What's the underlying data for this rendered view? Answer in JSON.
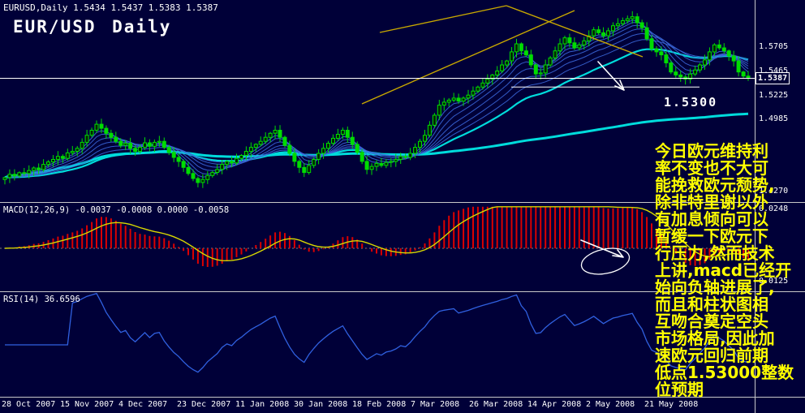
{
  "window": {
    "symbol_info": "EURUSD,Daily  1.5434 1.5437 1.5383 1.5387",
    "watermark": "EUR/USD Daily"
  },
  "quote": {
    "open": "1.5434",
    "high": "1.5437",
    "low": "1.5383",
    "close": "1.5387"
  },
  "colors": {
    "background": "#000038",
    "candle": "#00DC00",
    "candle_fill_up": "#002800",
    "ma_fan": "#3A66D8",
    "ma_slow": "#00DCDC",
    "macd_histogram": "#DC0000",
    "macd_signal": "#D8D800",
    "rsi_line": "#3060E0",
    "trendline": "#C8A800",
    "separator": "#C8C8C8",
    "level_line": "#FFFFFF",
    "annotation_text": "#FFFF00",
    "axis_text": "#FFFFFF"
  },
  "indicators": {
    "macd_label": "MACD(12,26,9) -0.0037 -0.0008 0.0000 -0.0058",
    "rsi_label": "RSI(14) 36.6596"
  },
  "level_label": "1.5300",
  "analysis_note": {
    "lines": [
      "今日欧元维持利",
      "率不变也不大可",
      "能挽救欧元颓势,",
      "除非特里谢以外",
      "有加息倾向可以",
      "暂缓一下欧元下",
      "行压力,然而技术",
      "上讲,macd已经开",
      "始向负轴进展了,",
      "而且和柱状图相",
      "互吻合奠定空头",
      "市场格局,因此加",
      "速欧元回归前期",
      "低点1.53000整数",
      "位预期"
    ]
  },
  "axes": {
    "price_labels": [
      "1.5705",
      "1.5465",
      "1.5225",
      "1.4985",
      "1.4270"
    ],
    "current_price": "1.5387",
    "macd_labels": [
      "0.0248",
      "0.0125"
    ],
    "dates": [
      "28 Oct 2007",
      "15 Nov 2007",
      "4 Dec 2007",
      "23 Dec 2007",
      "11 Jan 2008",
      "30 Jan 2008",
      "18 Feb 2008",
      "7 Mar 2008",
      "26 Mar 2008",
      "14 Apr 2008",
      "2 May 2008",
      "21 May 2008"
    ]
  },
  "chart_data": {
    "type": "candlestick",
    "symbol": "EURUSD",
    "timeframe": "Daily",
    "title": "EUR/USD Daily",
    "ylim": [
      1.418,
      1.615
    ],
    "current_price": 1.5387,
    "support_level": 1.53,
    "closes": [
      1.44,
      1.4432,
      1.4415,
      1.4448,
      1.444,
      1.447,
      1.4495,
      1.4478,
      1.453,
      1.4555,
      1.458,
      1.461,
      1.459,
      1.4645,
      1.466,
      1.469,
      1.475,
      1.482,
      1.487,
      1.493,
      1.489,
      1.484,
      1.48,
      1.476,
      1.472,
      1.474,
      1.469,
      1.466,
      1.47,
      1.4745,
      1.471,
      1.475,
      1.476,
      1.47,
      1.465,
      1.46,
      1.456,
      1.45,
      1.444,
      1.439,
      1.435,
      1.438,
      1.442,
      1.445,
      1.448,
      1.453,
      1.456,
      1.4545,
      1.459,
      1.462,
      1.466,
      1.47,
      1.473,
      1.476,
      1.48,
      1.484,
      1.487,
      1.48,
      1.472,
      1.464,
      1.456,
      1.45,
      1.445,
      1.452,
      1.458,
      1.464,
      1.469,
      1.474,
      1.479,
      1.483,
      1.487,
      1.48,
      1.473,
      1.465,
      1.456,
      1.448,
      1.451,
      1.454,
      1.452,
      1.455,
      1.456,
      1.458,
      1.461,
      1.46,
      1.464,
      1.47,
      1.476,
      1.482,
      1.492,
      1.502,
      1.512,
      1.515,
      1.517,
      1.519,
      1.516,
      1.519,
      1.522,
      1.526,
      1.53,
      1.534,
      1.538,
      1.542,
      1.546,
      1.552,
      1.556,
      1.565,
      1.573,
      1.566,
      1.562,
      1.552,
      1.543,
      1.544,
      1.552,
      1.559,
      1.566,
      1.573,
      1.579,
      1.574,
      1.569,
      1.572,
      1.576,
      1.581,
      1.587,
      1.584,
      1.581,
      1.586,
      1.591,
      1.593,
      1.596,
      1.598,
      1.6,
      1.594,
      1.589,
      1.578,
      1.568,
      1.565,
      1.562,
      1.554,
      1.545,
      1.542,
      1.54,
      1.538,
      1.543,
      1.547,
      1.552,
      1.557,
      1.565,
      1.572,
      1.569,
      1.566,
      1.561,
      1.556,
      1.545,
      1.541,
      1.5387
    ],
    "overlays": [
      {
        "name": "ema-fan",
        "periods": [
          4,
          6,
          9,
          13,
          18,
          24
        ]
      },
      {
        "name": "slow-ma",
        "periods": [
          34,
          "cumulative"
        ]
      }
    ],
    "indicators": [
      {
        "name": "MACD",
        "params": [
          12,
          26,
          9
        ],
        "shown_values": [
          "-0.0037",
          "-0.0008",
          "0.0000",
          "-0.0058"
        ],
        "axis_labels": [
          "0.0248",
          "0.0125"
        ]
      },
      {
        "name": "RSI",
        "params": [
          14
        ],
        "current": 36.6596
      }
    ],
    "annotations": [
      "rising-wedge trendlines",
      "down arrow at price",
      "ellipse + down arrow on MACD",
      "horizontal level 1.5300",
      "current price line 1.5387"
    ]
  }
}
